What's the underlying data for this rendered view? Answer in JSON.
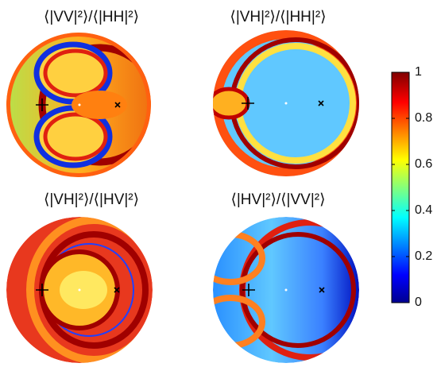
{
  "chart_data": {
    "type": "heatmap",
    "panels": [
      {
        "title": "⟨|VV|²⟩/⟨|HH|²⟩"
      },
      {
        "title": "⟨|VH|²⟩/⟨|HH|²⟩"
      },
      {
        "title": "⟨|VH|²⟩/⟨|HV|²⟩"
      },
      {
        "title": "⟨|HV|²⟩/⟨|VV|²⟩"
      }
    ],
    "colorbar": {
      "clim": [
        0,
        1
      ],
      "ticks": [
        0,
        0.2,
        0.4,
        0.6,
        0.8,
        1
      ]
    }
  }
}
